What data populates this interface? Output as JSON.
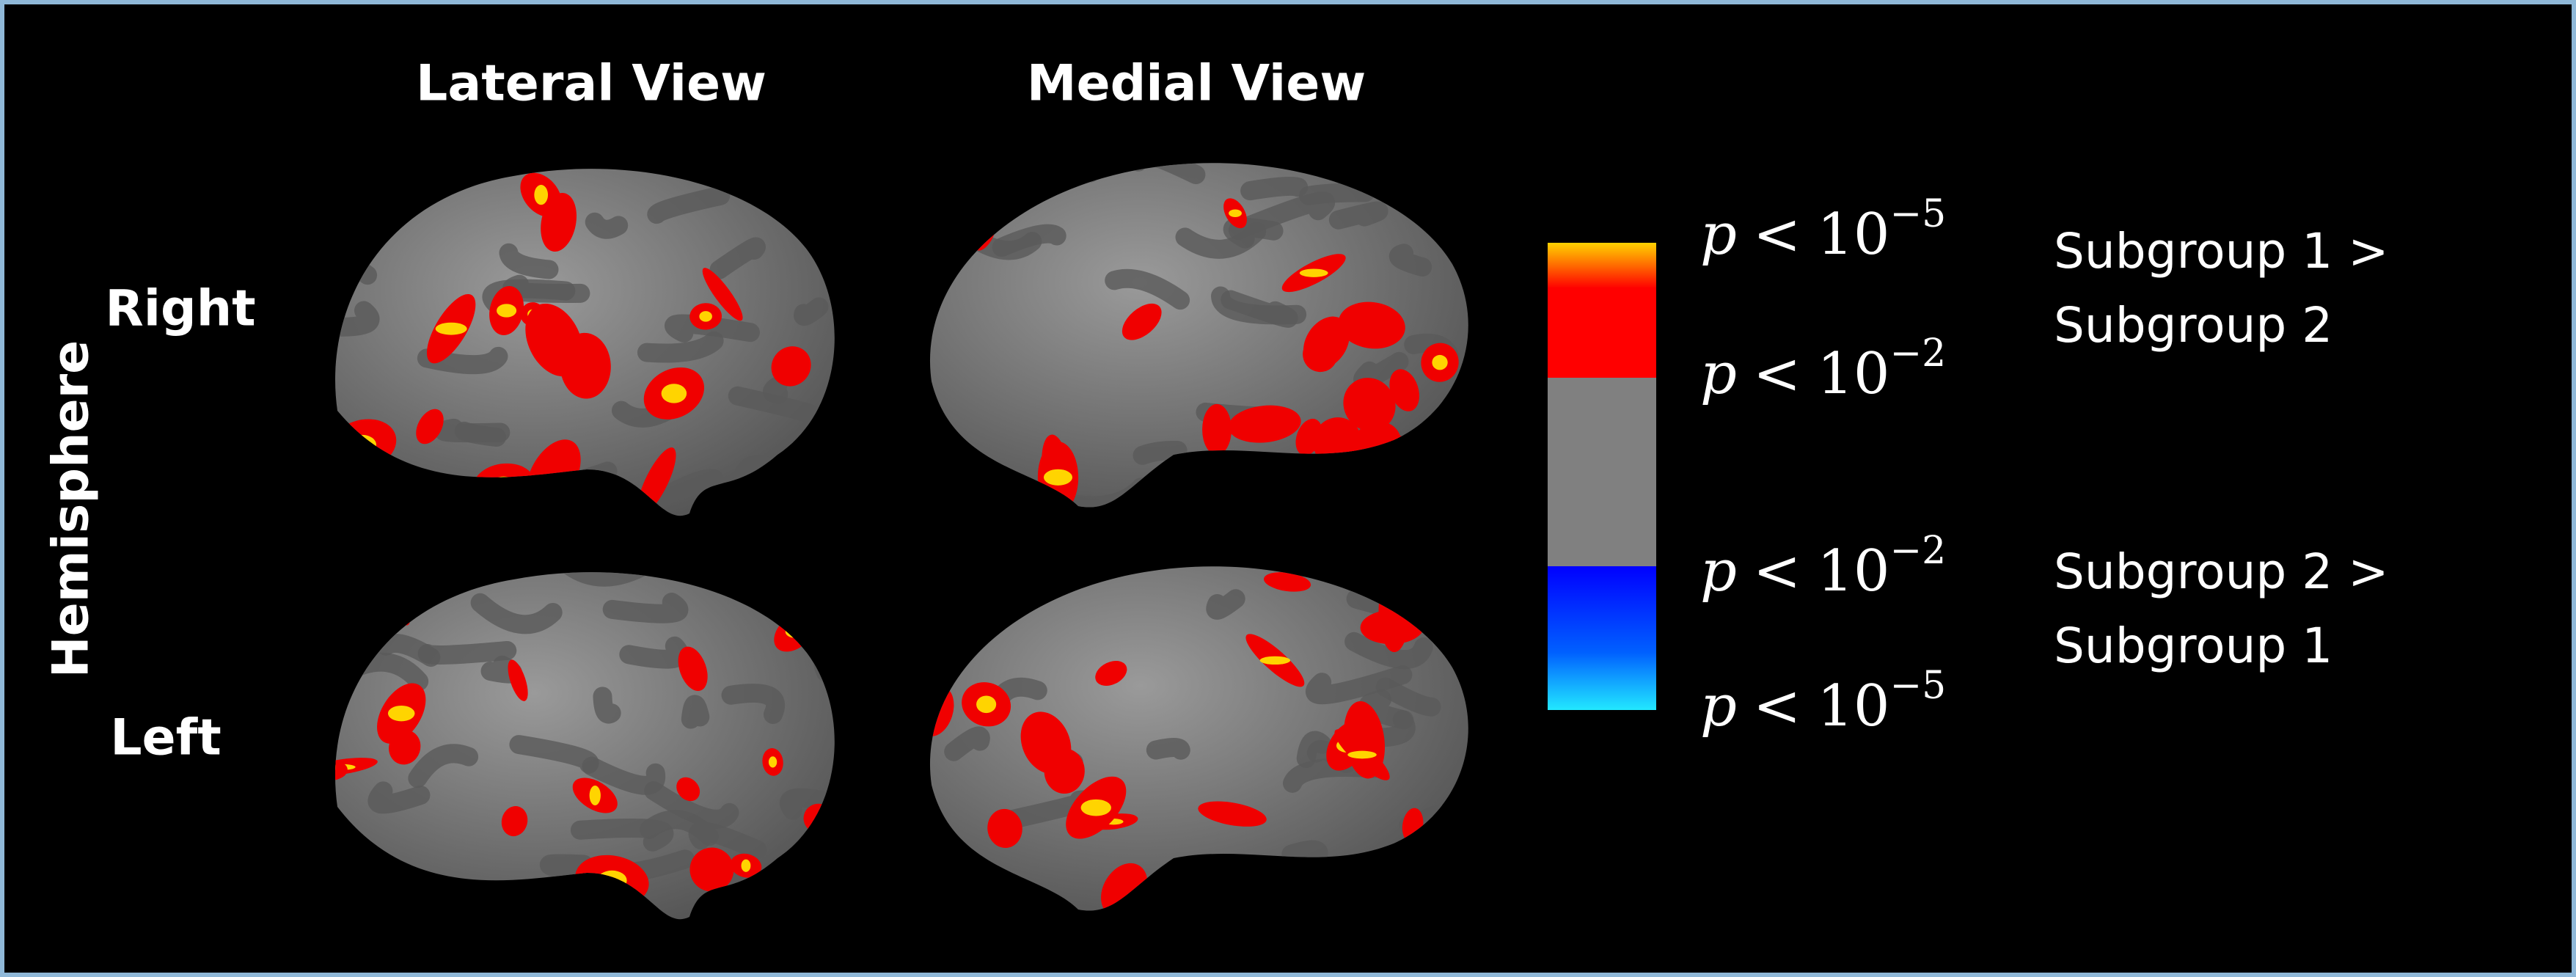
{
  "columns": [
    "Lateral View",
    "Medial View"
  ],
  "rows": [
    "Right",
    "Left"
  ],
  "row_axis_label": "Hemisphere",
  "colorbar": {
    "labels": [
      {
        "variable": "p",
        "relation": "<",
        "base": "10",
        "exponent": "−5"
      },
      {
        "variable": "p",
        "relation": "<",
        "base": "10",
        "exponent": "−2"
      },
      {
        "variable": "p",
        "relation": "<",
        "base": "10",
        "exponent": "−2"
      },
      {
        "variable": "p",
        "relation": "<",
        "base": "10",
        "exponent": "−5"
      }
    ],
    "groups": [
      [
        "Subgroup 1 >",
        "Subgroup 2"
      ],
      [
        "Subgroup 2 >",
        "Subgroup 1"
      ]
    ]
  }
}
